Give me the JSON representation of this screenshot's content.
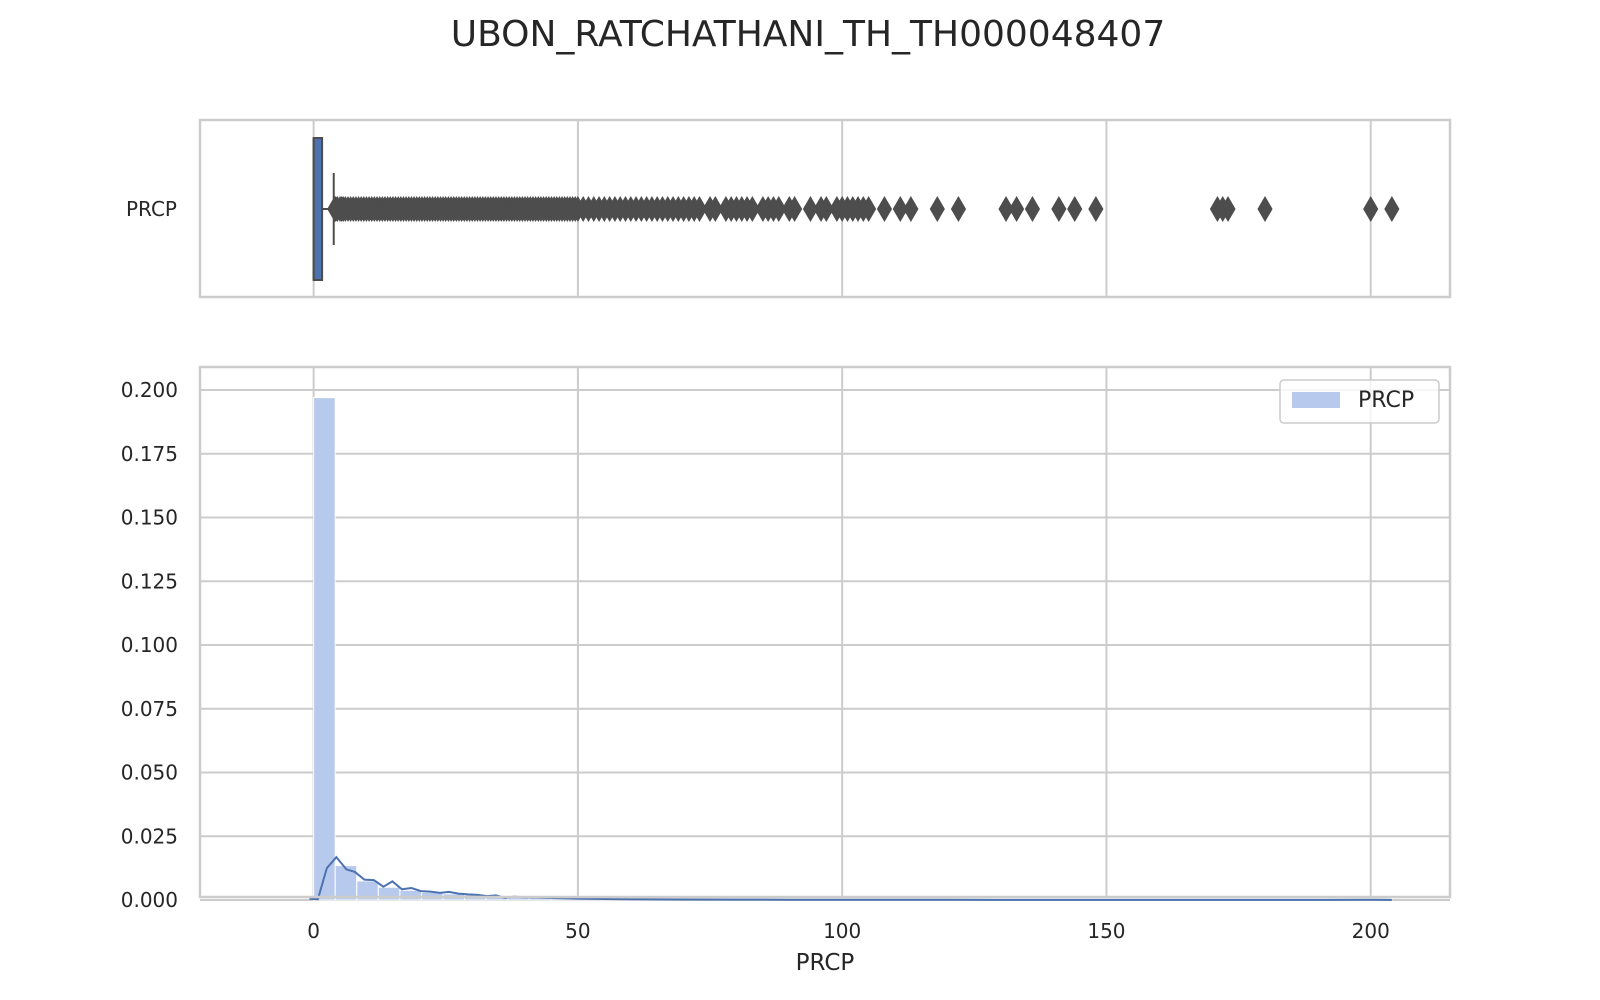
{
  "chart_data": {
    "title": "UBON_RATCHATHANI_TH_TH000048407",
    "xlabel": "PRCP",
    "xlim": [
      -21.5,
      215
    ],
    "x_ticks": [
      0,
      50,
      100,
      150,
      200
    ],
    "x_tick_labels": [
      "0",
      "50",
      "100",
      "150",
      "200"
    ],
    "grid": true,
    "colors": {
      "bar_fill": "#b7c9ec",
      "box_fill": "#4c72b0",
      "kde_line": "#4c72b0",
      "dark": "#4d4d4d",
      "grid": "#cccccc"
    },
    "boxplot": {
      "type": "box",
      "category_label": "PRCP",
      "q1": 0,
      "median": 0,
      "q3": 1.6,
      "whisker_low": 0,
      "whisker_high": 3.8,
      "outliers": [
        4,
        4.2,
        4.5,
        5,
        5.3,
        5.6,
        6,
        6.5,
        7,
        7.5,
        8,
        8.5,
        9,
        9.5,
        10,
        10.5,
        11,
        11.5,
        12,
        12.5,
        13,
        13.5,
        14,
        14.5,
        15,
        15.5,
        16,
        16.5,
        17,
        17.5,
        18,
        18.5,
        19,
        19.5,
        20,
        20.5,
        21,
        21.5,
        22,
        22.5,
        23,
        23.5,
        24,
        24.5,
        25,
        25.5,
        26,
        26.5,
        27,
        27.5,
        28,
        28.5,
        29,
        29.5,
        30,
        30.5,
        31,
        31.5,
        32,
        32.5,
        33,
        33.5,
        34,
        34.5,
        35,
        35.5,
        36,
        36.5,
        37,
        37.5,
        38,
        38.5,
        39,
        39.5,
        40,
        40.5,
        41,
        41.5,
        42,
        42.5,
        43,
        43.5,
        44,
        44.5,
        45,
        45.5,
        46,
        46.5,
        47,
        47.5,
        48,
        48.5,
        49,
        49.5,
        50,
        51,
        52,
        53,
        54,
        55,
        56,
        57,
        58,
        59,
        60,
        61,
        62,
        63,
        64,
        65,
        66,
        67,
        68,
        69,
        70,
        71,
        72,
        73,
        75,
        76,
        78,
        79,
        80,
        81,
        82,
        83,
        85,
        86,
        87,
        88,
        90,
        91,
        94,
        96,
        97,
        99,
        100,
        101,
        102,
        103,
        104,
        105,
        108,
        111,
        113,
        118,
        122,
        131,
        133,
        136,
        141,
        144,
        148,
        171,
        172,
        173,
        180,
        200,
        204
      ]
    },
    "histogram": {
      "type": "bar",
      "ylim": [
        0,
        0.2
      ],
      "y_ticks": [
        0,
        0.025,
        0.05,
        0.075,
        0.1,
        0.125,
        0.15,
        0.175,
        0.2
      ],
      "y_tick_labels": [
        "0.000",
        "0.025",
        "0.050",
        "0.075",
        "0.100",
        "0.125",
        "0.150",
        "0.175",
        "0.200"
      ],
      "bin_width": 4.08,
      "bin_edges_start": 0,
      "values": [
        0.197,
        0.0135,
        0.0075,
        0.005,
        0.0038,
        0.003,
        0.0024,
        0.002,
        0.0016,
        0.0012,
        0.001,
        0.0008,
        0.0007,
        0.0006,
        0.0005,
        0.0004,
        0.00035,
        0.0003,
        0.00025,
        0.0002,
        0.0002,
        0.00018,
        0.00015,
        0.00012,
        0.0001,
        0.0001,
        0.0001,
        8e-05,
        8e-05,
        8e-05,
        6e-05,
        6e-05,
        6e-05,
        5e-05,
        5e-05,
        5e-05,
        4e-05,
        4e-05,
        4e-05,
        3e-05,
        3e-05,
        3e-05,
        3e-05,
        3e-05,
        3e-05,
        3e-05,
        3e-05,
        3e-05,
        3e-05,
        3e-05
      ],
      "legend": {
        "label": "PRCP",
        "position": "upper right"
      }
    },
    "kde": {
      "type": "line",
      "x": [
        -0.8,
        0.8,
        2.5,
        4.3,
        6.2,
        7.8,
        9.6,
        11.4,
        13.2,
        14.9,
        16.7,
        18.5,
        20.3,
        22.1,
        23.9,
        25.6,
        27.4,
        29.2,
        31,
        32.8,
        34.5,
        36.2,
        38,
        40,
        42,
        45,
        50,
        55,
        60,
        70,
        80,
        90,
        100,
        110,
        120,
        130,
        140,
        150,
        160,
        170,
        180,
        190,
        200,
        204
      ],
      "y": [
        0.0005,
        0.0003,
        0.0125,
        0.0168,
        0.012,
        0.011,
        0.008,
        0.0078,
        0.0052,
        0.0073,
        0.0042,
        0.0047,
        0.0035,
        0.0033,
        0.0028,
        0.0032,
        0.0025,
        0.0022,
        0.002,
        0.0015,
        0.0018,
        0.0008,
        0.0013,
        0.001,
        0.001,
        0.0008,
        0.0005,
        0.0004,
        0.0003,
        0.0002,
        0.00015,
        0.0001,
        0.0001,
        8e-05,
        8e-05,
        6e-05,
        5e-05,
        5e-05,
        3e-05,
        3e-05,
        3e-05,
        3e-05,
        0.0001,
        5e-05
      ]
    }
  }
}
